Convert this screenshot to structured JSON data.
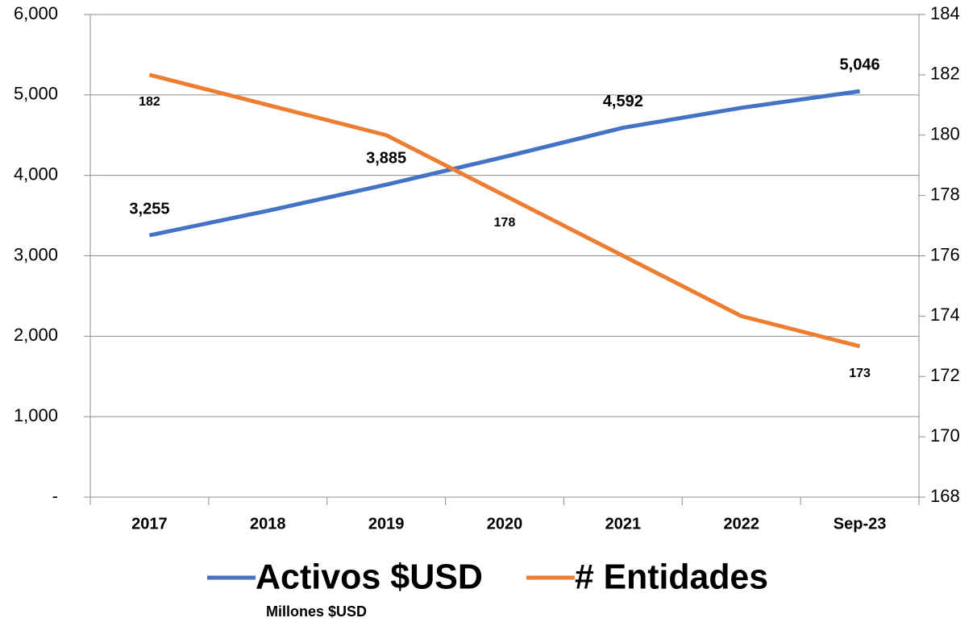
{
  "chart_data": {
    "type": "line",
    "categories": [
      "2017",
      "2018",
      "2019",
      "2020",
      "2021",
      "2022",
      "Sep-23"
    ],
    "series": [
      {
        "name": "Activos $USD",
        "color": "#4472c4",
        "values": [
          3255,
          3560,
          3885,
          4230,
          4592,
          4840,
          5046
        ],
        "value_labels": [
          "3,255",
          null,
          "3,885",
          null,
          "4,592",
          null,
          "5,046"
        ]
      },
      {
        "name": "# Entidades",
        "color": "#ed7d31",
        "axis": "y2",
        "values": [
          182,
          181,
          180,
          178,
          176,
          174,
          173
        ],
        "value_labels": [
          "182",
          null,
          null,
          "178",
          null,
          null,
          "173"
        ]
      }
    ],
    "ylim": [
      0,
      6000
    ],
    "yticks": [
      {
        "value": 0,
        "label": "-"
      },
      {
        "value": 1000,
        "label": "1,000"
      },
      {
        "value": 2000,
        "label": "2,000"
      },
      {
        "value": 3000,
        "label": "3,000"
      },
      {
        "value": 4000,
        "label": "4,000"
      },
      {
        "value": 5000,
        "label": "5,000"
      },
      {
        "value": 6000,
        "label": "6,000"
      }
    ],
    "y2lim": [
      168,
      184
    ],
    "y2ticks": [
      168,
      170,
      172,
      174,
      176,
      178,
      180,
      182,
      184
    ],
    "annotation": "Millones $USD",
    "grid": true,
    "legend": "bottom"
  }
}
